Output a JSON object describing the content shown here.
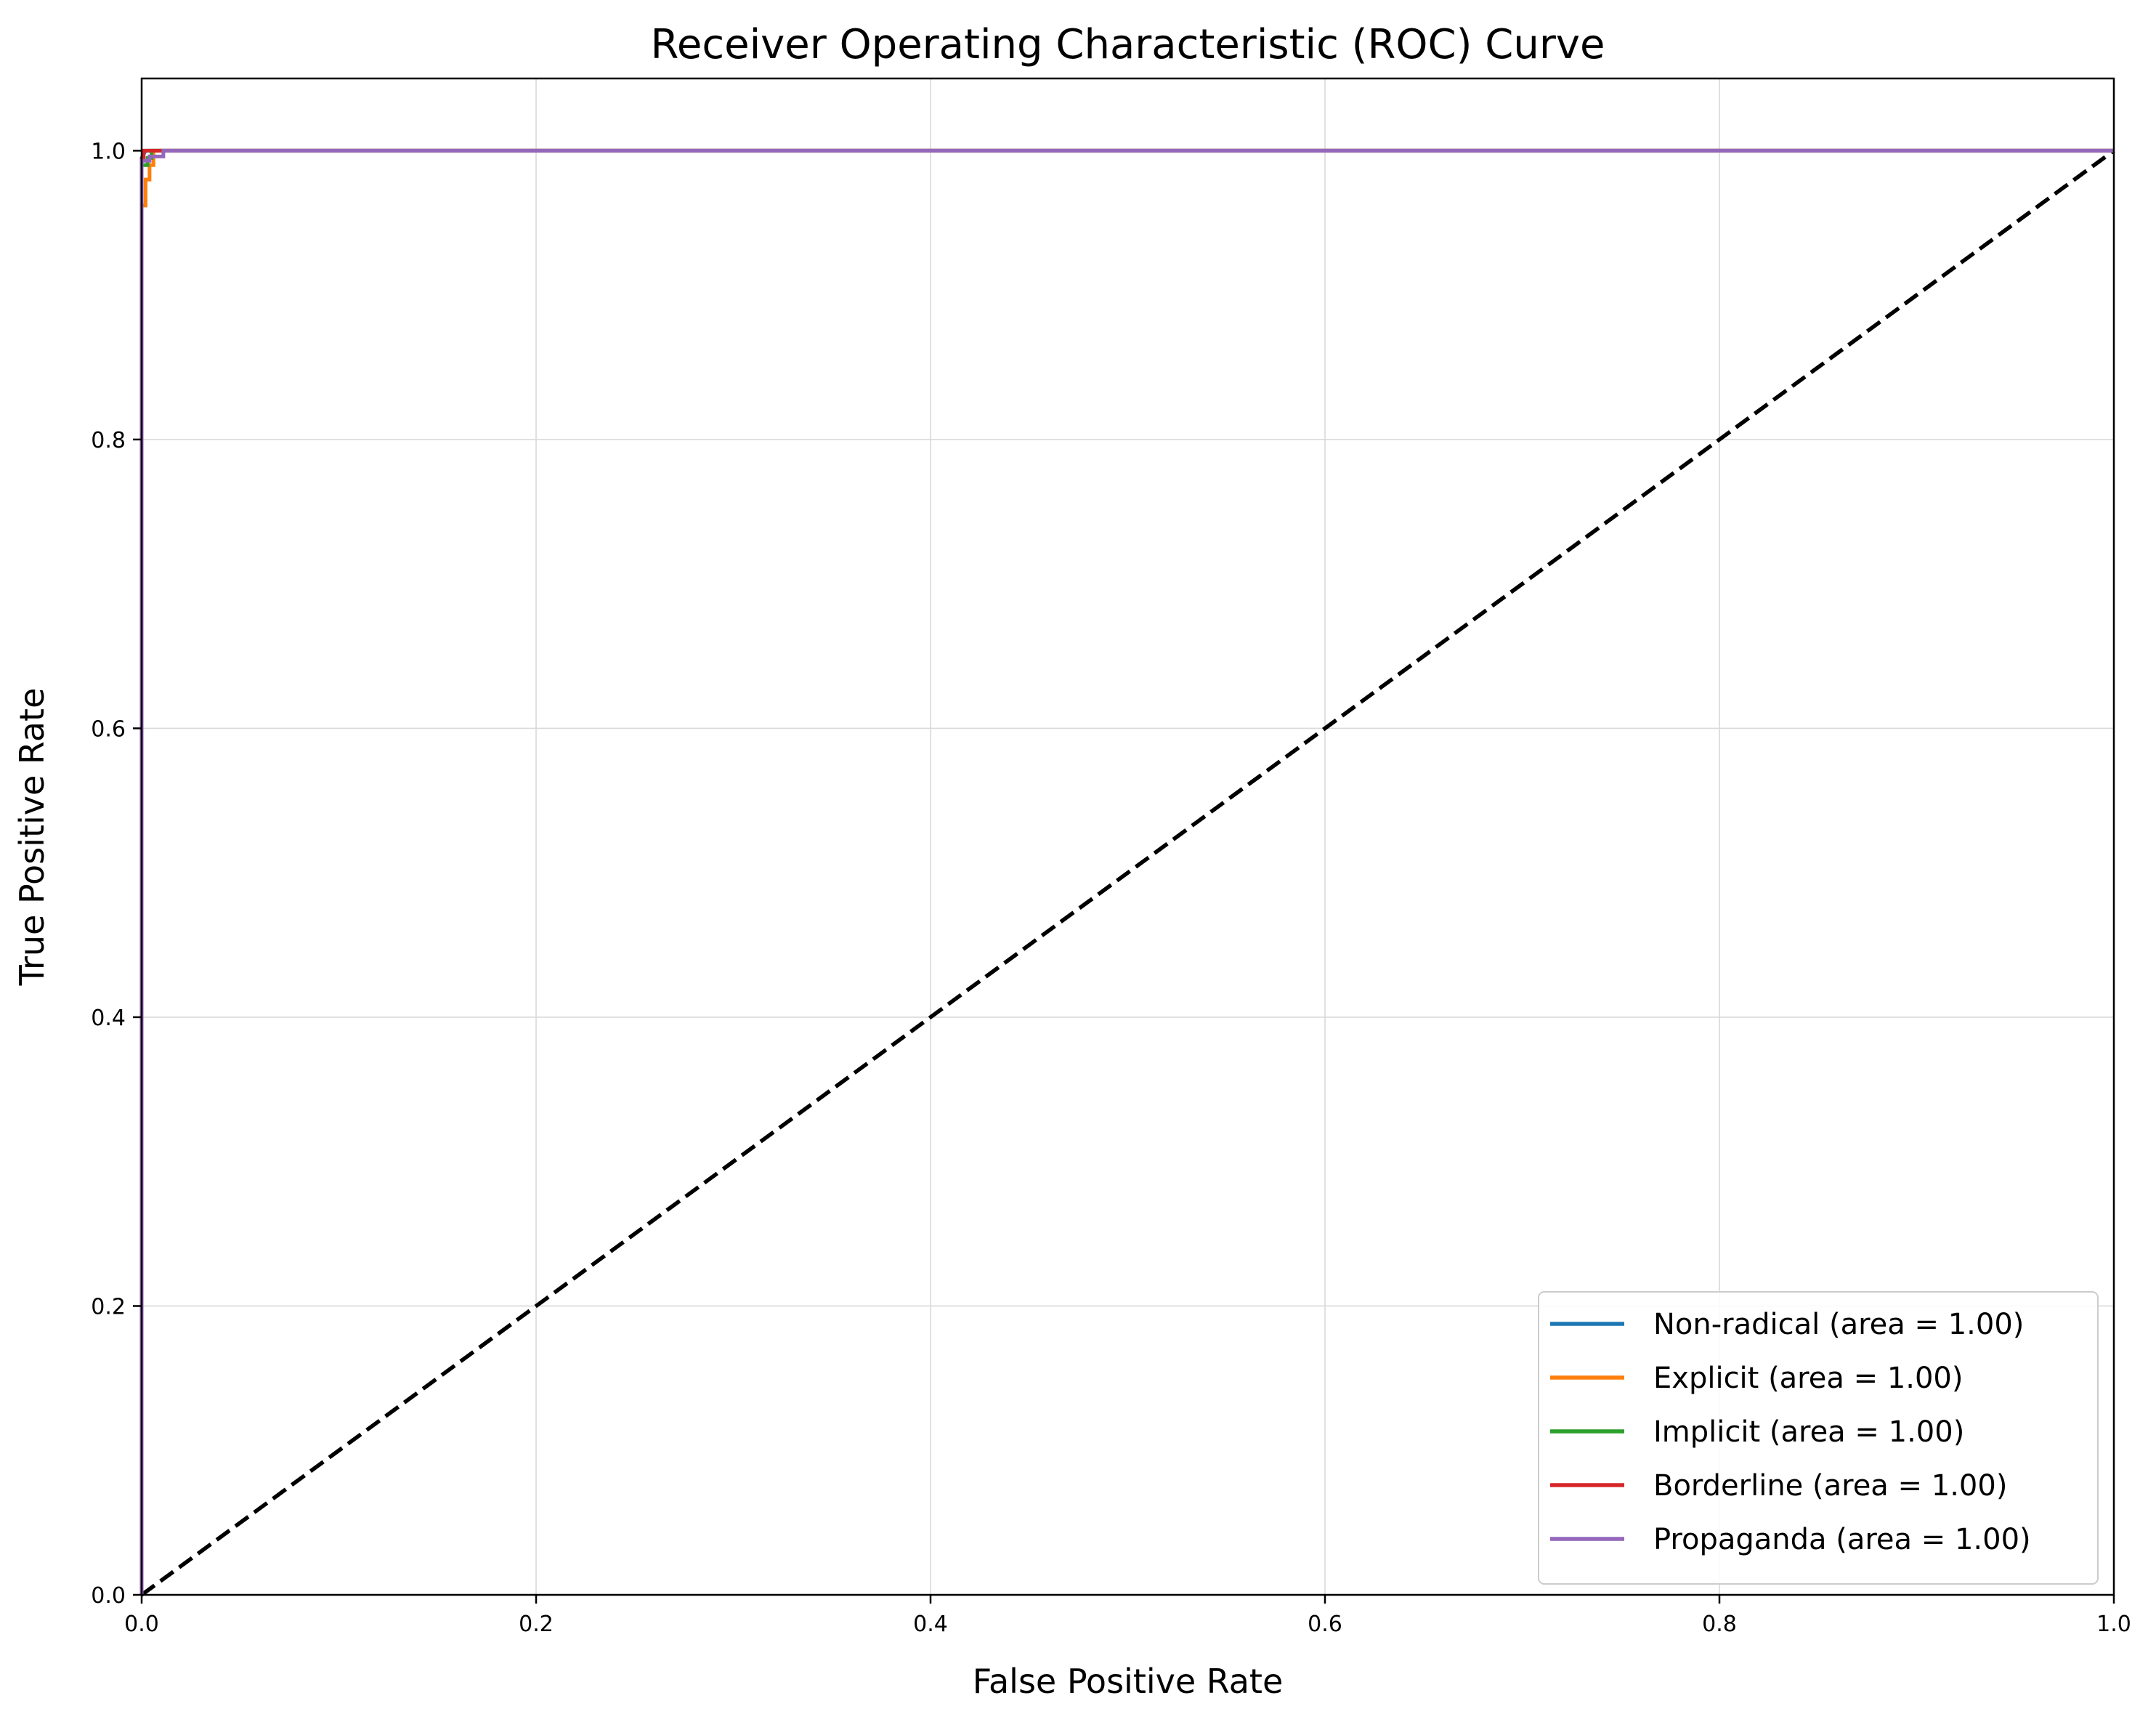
{
  "chart_data": {
    "type": "line",
    "title": "Receiver Operating Characteristic (ROC) Curve",
    "xlabel": "False Positive Rate",
    "ylabel": "True Positive Rate",
    "xlim": [
      0.0,
      1.0
    ],
    "ylim": [
      0.0,
      1.05
    ],
    "xticks": [
      0.0,
      0.2,
      0.4,
      0.6,
      0.8,
      1.0
    ],
    "xtick_labels": [
      "0.0",
      "0.2",
      "0.4",
      "0.6",
      "0.8",
      "1.0"
    ],
    "yticks": [
      0.0,
      0.2,
      0.4,
      0.6,
      0.8,
      1.0
    ],
    "ytick_labels": [
      "0.0",
      "0.2",
      "0.4",
      "0.6",
      "0.8",
      "1.0"
    ],
    "grid": true,
    "legend_position": "lower-right",
    "series": [
      {
        "name": "Non-radical (area = 1.00)",
        "color": "#1f77b4",
        "x": [
          0.0,
          0.0,
          0.0,
          0.002,
          1.0
        ],
        "y": [
          0.0,
          0.985,
          0.995,
          1.0,
          1.0
        ]
      },
      {
        "name": "Explicit (area = 1.00)",
        "color": "#ff7f0e",
        "x": [
          0.0,
          0.0,
          0.002,
          0.002,
          0.004,
          0.004,
          0.006,
          0.006,
          1.0
        ],
        "y": [
          0.0,
          0.962,
          0.962,
          0.98,
          0.98,
          0.99,
          0.99,
          1.0,
          1.0
        ]
      },
      {
        "name": "Implicit (area = 1.00)",
        "color": "#2ca02c",
        "x": [
          0.0,
          0.0,
          0.003,
          0.003,
          0.005,
          0.005,
          1.0
        ],
        "y": [
          0.0,
          0.99,
          0.99,
          0.995,
          0.995,
          1.0,
          1.0
        ]
      },
      {
        "name": "Borderline (area = 1.00)",
        "color": "#d62728",
        "x": [
          0.0,
          0.0,
          0.001,
          0.001,
          0.008,
          1.0
        ],
        "y": [
          0.0,
          0.994,
          0.994,
          1.0,
          1.0,
          1.0
        ]
      },
      {
        "name": "Propaganda (area = 1.00)",
        "color": "#9467bd",
        "x": [
          0.0,
          0.0,
          0.004,
          0.004,
          0.011,
          0.011,
          1.0
        ],
        "y": [
          0.0,
          0.993,
          0.993,
          0.996,
          0.996,
          1.0,
          1.0
        ]
      }
    ],
    "reference_line": {
      "x": [
        0.0,
        1.0
      ],
      "y": [
        0.0,
        1.0
      ],
      "color": "#000000",
      "style": "dashed"
    }
  }
}
